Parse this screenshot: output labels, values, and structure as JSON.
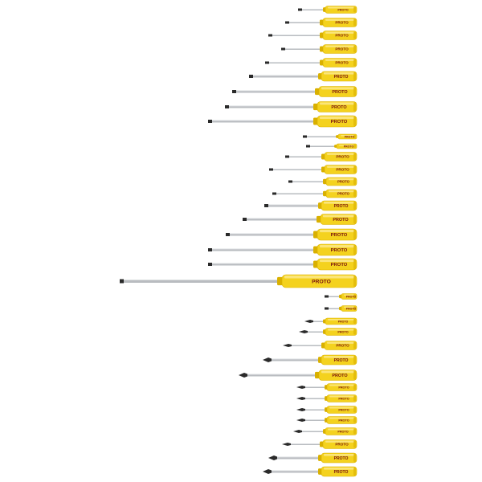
{
  "scene": {
    "description_free": true,
    "background": "#ffffff",
    "handle_color": "#f4d21e",
    "handle_highlight": "#fbe98a",
    "handle_shadow": "#d9b000",
    "shaft_color": "#b9bcc0",
    "tip_color": "#2a2a2a",
    "brand_text": "PROTO"
  },
  "screwdrivers": [
    {
      "tip": "slotted",
      "brand": "PROTO"
    },
    {
      "tip": "slotted",
      "brand": "PROTO"
    },
    {
      "tip": "slotted",
      "brand": "PROTO"
    },
    {
      "tip": "slotted",
      "brand": "PROTO"
    },
    {
      "tip": "slotted",
      "brand": "PROTO"
    },
    {
      "tip": "slotted",
      "brand": "PROTO"
    },
    {
      "tip": "slotted",
      "brand": "PROTO"
    },
    {
      "tip": "slotted",
      "brand": "PROTO"
    },
    {
      "tip": "slotted",
      "brand": "PROTO"
    },
    {
      "tip": "slotted",
      "brand": "PROTO"
    },
    {
      "tip": "slotted",
      "brand": "PROTO"
    },
    {
      "tip": "slotted",
      "brand": "PROTO"
    },
    {
      "tip": "slotted",
      "brand": "PROTO"
    },
    {
      "tip": "slotted",
      "brand": "PROTO"
    },
    {
      "tip": "slotted",
      "brand": "PROTO"
    },
    {
      "tip": "slotted",
      "brand": "PROTO"
    },
    {
      "tip": "slotted",
      "brand": "PROTO"
    },
    {
      "tip": "slotted",
      "brand": "PROTO"
    },
    {
      "tip": "slotted",
      "brand": "PROTO"
    },
    {
      "tip": "slotted",
      "brand": "PROTO"
    },
    {
      "tip": "slotted",
      "brand": "PROTO"
    },
    {
      "tip": "slotted",
      "brand": "PROTO"
    },
    {
      "tip": "slotted",
      "brand": "PROTO"
    },
    {
      "tip": "phillips",
      "brand": "PROTO"
    },
    {
      "tip": "phillips",
      "brand": "PROTO"
    },
    {
      "tip": "phillips",
      "brand": "PROTO"
    },
    {
      "tip": "phillips",
      "brand": "PROTO"
    },
    {
      "tip": "phillips",
      "brand": "PROTO"
    },
    {
      "tip": "phillips",
      "brand": "PROTO"
    },
    {
      "tip": "phillips",
      "brand": "PROTO"
    },
    {
      "tip": "phillips",
      "brand": "PROTO"
    },
    {
      "tip": "phillips",
      "brand": "PROTO"
    },
    {
      "tip": "phillips",
      "brand": "PROTO"
    },
    {
      "tip": "phillips",
      "brand": "PROTO"
    },
    {
      "tip": "phillips",
      "brand": "PROTO"
    },
    {
      "tip": "phillips",
      "brand": "PROTO"
    },
    {
      "tip": "phillips",
      "brand": "PROTO"
    },
    {
      "tip": "phillips",
      "brand": "PROTO"
    },
    {
      "tip": "phillips",
      "brand": "PROTO"
    },
    {
      "tip": "phillips",
      "brand": "PROTO"
    }
  ]
}
